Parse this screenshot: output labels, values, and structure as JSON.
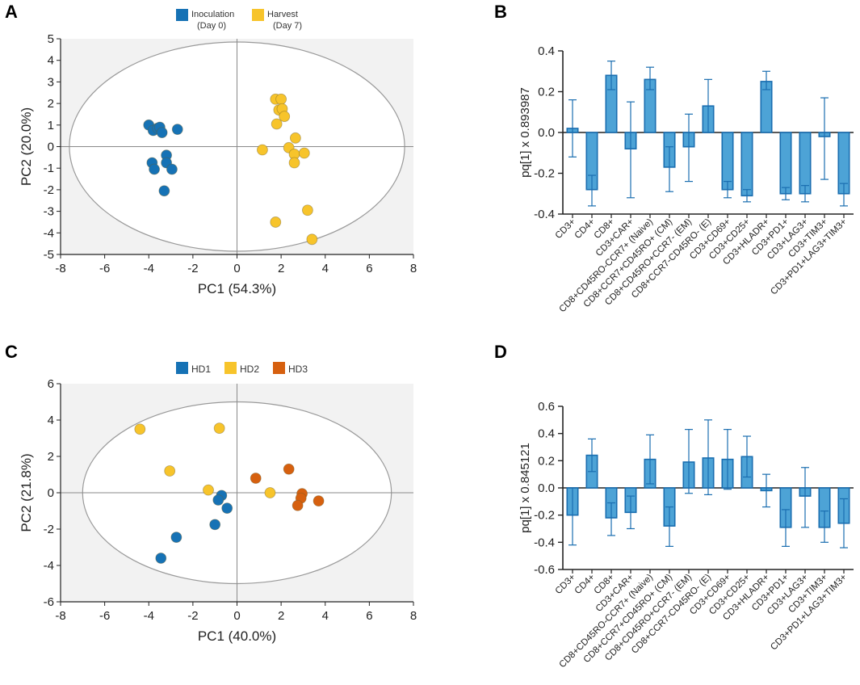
{
  "colors": {
    "blue": "#1672b5",
    "yellow": "#f7c42b",
    "orange": "#d6600f",
    "bar_fill": "#4da3d6",
    "bar_edge": "#1a6eb0",
    "plot_bg": "#f2f2f2",
    "ellipse": "#9a9a9a",
    "axis": "#222222"
  },
  "panels": {
    "A": "A",
    "B": "B",
    "C": "C",
    "D": "D"
  },
  "chart_data": [
    {
      "id": "A",
      "type": "scatter",
      "title": "",
      "xlabel": "PC1 (54.3%)",
      "ylabel": "PC2 (20.0%)",
      "xlim": [
        -8,
        8
      ],
      "ylim": [
        -5,
        5
      ],
      "xticks": [
        -8,
        -6,
        -4,
        -2,
        0,
        2,
        4,
        6,
        8
      ],
      "yticks": [
        -5,
        -4,
        -3,
        -2,
        -1,
        0,
        1,
        2,
        3,
        4,
        5
      ],
      "ellipse": {
        "cx": 0,
        "cy": 0,
        "rx": 7.6,
        "ry": 4.85
      },
      "legend": [
        {
          "name": "Inoculation",
          "sub": "(Day 0)",
          "color": "#1672b5"
        },
        {
          "name": "Harvest",
          "sub": "(Day 7)",
          "color": "#f7c42b"
        }
      ],
      "series": [
        {
          "name": "Inoculation (Day 0)",
          "color": "#1672b5",
          "points": [
            [
              -4.0,
              1.0
            ],
            [
              -3.8,
              0.75
            ],
            [
              -3.6,
              0.85
            ],
            [
              -3.5,
              0.9
            ],
            [
              -3.4,
              0.65
            ],
            [
              -2.7,
              0.8
            ],
            [
              -3.2,
              -0.4
            ],
            [
              -3.85,
              -0.75
            ],
            [
              -3.75,
              -1.05
            ],
            [
              -3.2,
              -0.75
            ],
            [
              -2.95,
              -1.05
            ],
            [
              -3.3,
              -2.05
            ]
          ]
        },
        {
          "name": "Harvest (Day 7)",
          "color": "#f7c42b",
          "points": [
            [
              1.75,
              2.2
            ],
            [
              2.0,
              2.2
            ],
            [
              1.9,
              1.7
            ],
            [
              2.05,
              1.75
            ],
            [
              2.15,
              1.4
            ],
            [
              1.8,
              1.05
            ],
            [
              2.65,
              0.4
            ],
            [
              1.15,
              -0.15
            ],
            [
              2.35,
              -0.05
            ],
            [
              2.6,
              -0.35
            ],
            [
              3.05,
              -0.3
            ],
            [
              2.6,
              -0.75
            ],
            [
              3.2,
              -2.95
            ],
            [
              1.75,
              -3.5
            ],
            [
              3.4,
              -4.3
            ]
          ]
        }
      ]
    },
    {
      "id": "B",
      "type": "bar",
      "ylabel": "pq[1] x 0.893987",
      "ylim": [
        -0.4,
        0.4
      ],
      "yticks": [
        -0.4,
        -0.2,
        0.0,
        0.2,
        0.4
      ],
      "ytick_labels": [
        "-0.4",
        "-0.2",
        "0.0",
        "0.2",
        "0.4"
      ],
      "categories": [
        "CD3+",
        "CD4+",
        "CD8+",
        "CD3+CAR+",
        "CD8+CD45RO-CCR7+ (Naive)",
        "CD8+CCR7+CD45RO+ (CM)",
        "CD8+CD45RO+CCR7- (EM)",
        "CD8+CCR7-CD45RO- (E)",
        "CD3+CD69+",
        "CD3+CD25+",
        "CD3+HLADR+",
        "CD3+PD1+",
        "CD3+LAG3+",
        "CD3+TIM3+",
        "CD3+PD1+LAG3+TIM3+"
      ],
      "values": [
        0.02,
        -0.28,
        0.28,
        -0.08,
        0.26,
        -0.17,
        -0.07,
        0.13,
        -0.28,
        -0.31,
        0.25,
        -0.3,
        -0.3,
        -0.02,
        -0.3
      ],
      "errors": [
        [
          -0.12,
          0.16
        ],
        [
          -0.36,
          -0.21
        ],
        [
          0.21,
          0.35
        ],
        [
          -0.32,
          0.15
        ],
        [
          0.21,
          0.32
        ],
        [
          -0.29,
          -0.07
        ],
        [
          -0.24,
          0.09
        ],
        [
          0.0,
          0.26
        ],
        [
          -0.32,
          -0.24
        ],
        [
          -0.34,
          -0.28
        ],
        [
          0.21,
          0.3
        ],
        [
          -0.33,
          -0.27
        ],
        [
          -0.34,
          -0.26
        ],
        [
          -0.23,
          0.17
        ],
        [
          -0.36,
          -0.25
        ]
      ]
    },
    {
      "id": "C",
      "type": "scatter",
      "title": "",
      "xlabel": "PC1 (40.0%)",
      "ylabel": "PC2 (21.8%)",
      "xlim": [
        -8,
        8
      ],
      "ylim": [
        -6,
        6
      ],
      "xticks": [
        -8,
        -6,
        -4,
        -2,
        0,
        2,
        4,
        6,
        8
      ],
      "yticks": [
        -6,
        -4,
        -2,
        0,
        2,
        4,
        6
      ],
      "ellipse": {
        "cx": 0,
        "cy": 0,
        "rx": 7.0,
        "ry": 5.0
      },
      "legend": [
        {
          "name": "HD1",
          "sub": "",
          "color": "#1672b5"
        },
        {
          "name": "HD2",
          "sub": "",
          "color": "#f7c42b"
        },
        {
          "name": "HD3",
          "sub": "",
          "color": "#d6600f"
        }
      ],
      "series": [
        {
          "name": "HD1",
          "color": "#1672b5",
          "points": [
            [
              -0.7,
              -0.15
            ],
            [
              -0.85,
              -0.4
            ],
            [
              -0.45,
              -0.85
            ],
            [
              -1.0,
              -1.75
            ],
            [
              -2.75,
              -2.45
            ],
            [
              -3.45,
              -3.6
            ]
          ]
        },
        {
          "name": "HD2",
          "color": "#f7c42b",
          "points": [
            [
              -4.4,
              3.5
            ],
            [
              -0.8,
              3.55
            ],
            [
              -3.05,
              1.2
            ],
            [
              -1.3,
              0.15
            ],
            [
              1.5,
              0.0
            ]
          ]
        },
        {
          "name": "HD3",
          "color": "#d6600f",
          "points": [
            [
              0.85,
              0.8
            ],
            [
              2.35,
              1.3
            ],
            [
              2.95,
              -0.05
            ],
            [
              2.9,
              -0.3
            ],
            [
              2.75,
              -0.7
            ],
            [
              3.7,
              -0.45
            ]
          ]
        }
      ]
    },
    {
      "id": "D",
      "type": "bar",
      "ylabel": "pq[1] x 0.845121",
      "ylim": [
        -0.6,
        0.6
      ],
      "yticks": [
        -0.6,
        -0.4,
        -0.2,
        0.0,
        0.2,
        0.4,
        0.6
      ],
      "ytick_labels": [
        "-0.6",
        "-0.4",
        "-0.2",
        "0.0",
        "0.2",
        "0.4",
        "0.6"
      ],
      "categories": [
        "CD3+",
        "CD4+",
        "CD8+",
        "CD3+CAR+",
        "CD8+CD45RO-CCR7+ (Naive)",
        "CD8+CCR7+CD45RO+ (CM)",
        "CD8+CD45RO+CCR7- (EM)",
        "CD8+CCR7-CD45RO- (E)",
        "CD3+CD69+",
        "CD3+CD25+",
        "CD3+HLADR+",
        "CD3+PD1+",
        "CD3+LAG3+",
        "CD3+TIM3+",
        "CD3+PD1+LAG3+TIM3+"
      ],
      "values": [
        -0.2,
        0.24,
        -0.22,
        -0.18,
        0.21,
        -0.28,
        0.19,
        0.22,
        0.21,
        0.23,
        -0.02,
        -0.29,
        -0.06,
        -0.29,
        -0.26
      ],
      "errors": [
        [
          -0.42,
          0.0
        ],
        [
          0.12,
          0.36
        ],
        [
          -0.35,
          -0.11
        ],
        [
          -0.3,
          -0.06
        ],
        [
          0.03,
          0.39
        ],
        [
          -0.43,
          -0.14
        ],
        [
          -0.04,
          0.43
        ],
        [
          -0.05,
          0.5
        ],
        [
          -0.01,
          0.43
        ],
        [
          0.08,
          0.38
        ],
        [
          -0.14,
          0.1
        ],
        [
          -0.43,
          -0.16
        ],
        [
          -0.29,
          0.15
        ],
        [
          -0.4,
          -0.17
        ],
        [
          -0.44,
          -0.08
        ]
      ]
    }
  ]
}
